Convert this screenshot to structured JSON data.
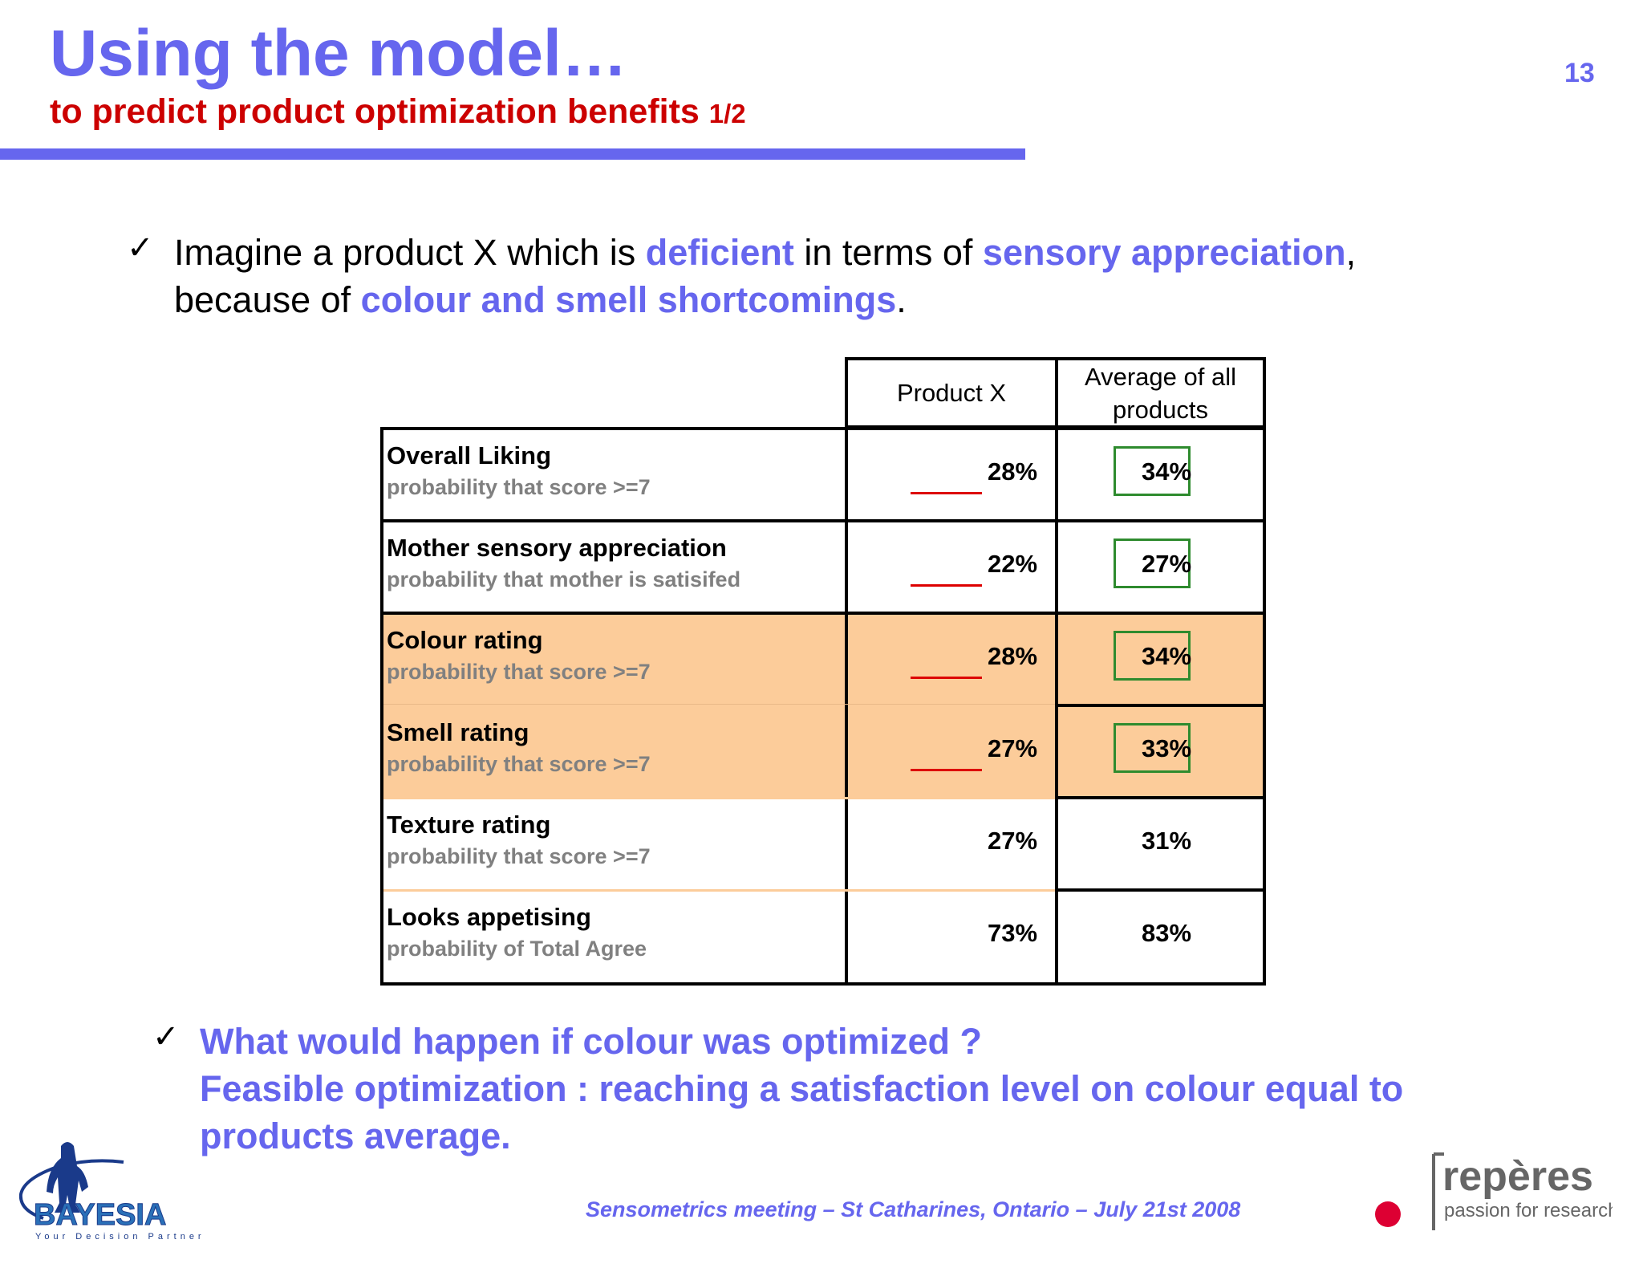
{
  "header": {
    "title": "Using the model…",
    "subtitle": "to predict product optimization benefits",
    "subtitle_suffix": "1/2",
    "page_number": "13"
  },
  "bullet1": {
    "check": "✓",
    "t1": "Imagine a product X which is ",
    "h1": "deficient",
    "t2": " in terms of ",
    "h2": "sensory appreciation",
    "t3": ",",
    "t4": "because of ",
    "h3": "colour and smell shortcomings",
    "t5": "."
  },
  "table": {
    "col_product_x": "Product X",
    "col_average_l1": "Average of all",
    "col_average_l2": "products",
    "rows": [
      {
        "label": "Overall Liking",
        "sub": "probability that score >=7",
        "product_x": "28%",
        "average": "34%"
      },
      {
        "label": "Mother sensory appreciation",
        "sub": "probability that mother is satisifed",
        "product_x": "22%",
        "average": "27%"
      },
      {
        "label": "Colour rating",
        "sub": "probability that score >=7",
        "product_x": "28%",
        "average": "34%"
      },
      {
        "label": "Smell rating",
        "sub": "probability that score >=7",
        "product_x": "27%",
        "average": "33%"
      },
      {
        "label": "Texture rating",
        "sub": "probability that score >=7",
        "product_x": "27%",
        "average": "31%"
      },
      {
        "label": "Looks appetising",
        "sub": "probability of Total Agree",
        "product_x": "73%",
        "average": "83%"
      }
    ]
  },
  "bullet2": {
    "check": "✓",
    "line1": "What would happen if colour was optimized ?",
    "line2": "Feasible optimization : reaching a satisfaction level on colour equal to",
    "line3": "products average."
  },
  "footer": {
    "text": "Sensometrics meeting – St Catharines, Ontario – July 21st  2008"
  },
  "logos": {
    "bayesia_name": "BAYESIA",
    "bayesia_tagline": "Your Decision Partner",
    "reperes_name": "repères",
    "reperes_tagline": "passion for research"
  },
  "colors": {
    "accent": "#6666ee",
    "subtitle": "#cc0000",
    "highlight_rows": "#fccc9a",
    "underline": "#dd0000",
    "box": "#2e8b2e"
  }
}
